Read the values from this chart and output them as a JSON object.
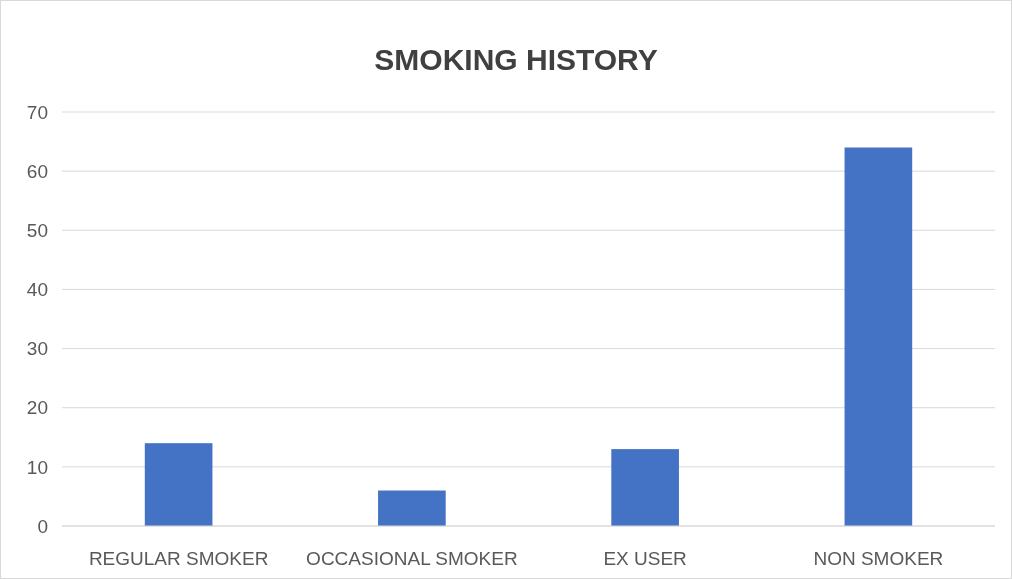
{
  "chart_data": {
    "type": "bar",
    "title": "SMOKING HISTORY",
    "categories": [
      "REGULAR SMOKER",
      "OCCASIONAL SMOKER",
      "EX USER",
      "NON SMOKER"
    ],
    "values": [
      14,
      6,
      13,
      64
    ],
    "color": "#4472c4",
    "ylim": [
      0,
      70
    ],
    "yticks": [
      0,
      10,
      20,
      30,
      40,
      50,
      60,
      70
    ],
    "grid": "y",
    "legend": false
  }
}
